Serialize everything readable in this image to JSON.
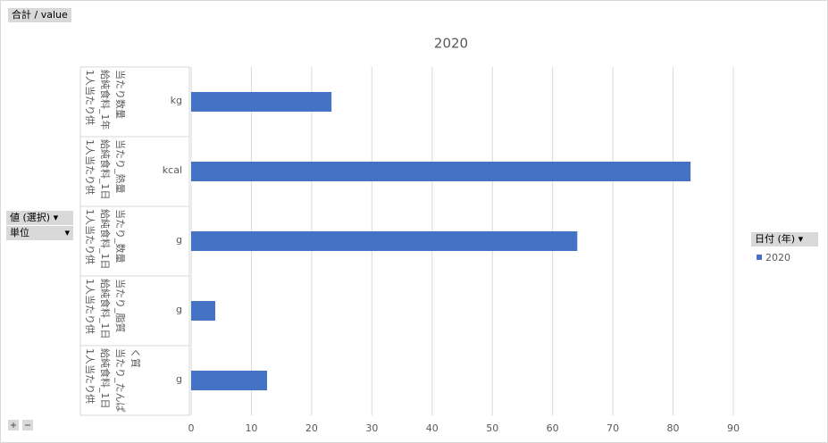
{
  "field_buttons": {
    "values": "合計 / value",
    "axis": [
      "値 (選択)",
      "単位"
    ]
  },
  "chart_data": {
    "type": "bar",
    "orientation": "horizontal",
    "title": "2020",
    "categories": [
      "1人当たり供給純食料_1年当たり数量",
      "1人当たり供給純食料_1日当たり_熱量",
      "1人当たり供給純食料_1日当たり_数量",
      "1人当たり供給純食料_1日当たり_脂質",
      "1人当たり供給純食料_1日当たり_たんぱく質"
    ],
    "subcategories": [
      "kg",
      "kcal",
      "g",
      "g",
      "g"
    ],
    "series": [
      {
        "name": "2020",
        "color": "#4472c4",
        "values": [
          23.3,
          82.9,
          64.1,
          4.0,
          12.6
        ]
      }
    ],
    "xlim": [
      0,
      90
    ],
    "xticks": [
      0,
      10,
      20,
      30,
      40,
      50,
      60,
      70,
      80,
      90
    ],
    "grid": true,
    "legend_title": "日付 (年)",
    "legend": "right"
  }
}
